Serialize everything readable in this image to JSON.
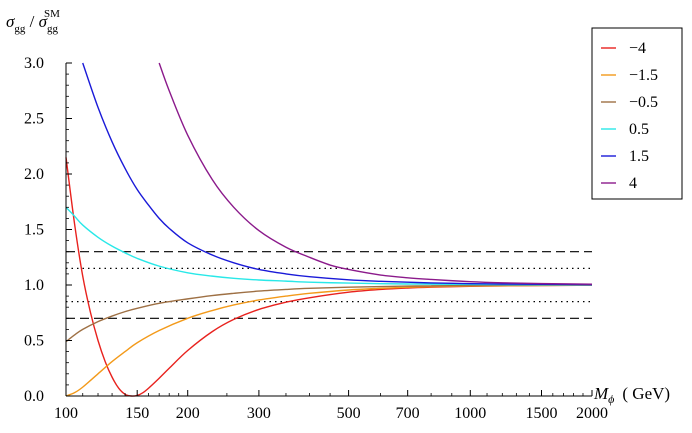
{
  "chart_data": {
    "type": "line",
    "ylabel": {
      "main": "σ",
      "main_sub": "gg",
      "sep": " / ",
      "den": "σ",
      "den_sub": "gg",
      "den_sup": "SM"
    },
    "xlabel": {
      "main": "M",
      "sub": "ϕ",
      "unit": "( GeV)"
    },
    "x_scale": "log",
    "xlim": [
      100,
      2000
    ],
    "ylim": [
      0,
      3.0
    ],
    "x_ticks": [
      {
        "value": 100,
        "label": "100"
      },
      {
        "value": 150,
        "label": "150"
      },
      {
        "value": 200,
        "label": "200"
      },
      {
        "value": 300,
        "label": "300"
      },
      {
        "value": 500,
        "label": "500"
      },
      {
        "value": 700,
        "label": "700"
      },
      {
        "value": 1000,
        "label": "1000"
      },
      {
        "value": 1500,
        "label": "1500"
      },
      {
        "value": 2000,
        "label": "2000"
      }
    ],
    "y_ticks": [
      {
        "value": 0.0,
        "label": "0.0"
      },
      {
        "value": 0.5,
        "label": "0.5"
      },
      {
        "value": 1.0,
        "label": "1.0"
      },
      {
        "value": 1.5,
        "label": "1.5"
      },
      {
        "value": 2.0,
        "label": "2.0"
      },
      {
        "value": 2.5,
        "label": "2.5"
      },
      {
        "value": 3.0,
        "label": "3.0"
      }
    ],
    "grid": false,
    "legend": {
      "position": "top-right"
    },
    "reference_lines": [
      {
        "y": 1.3,
        "style": "dashed"
      },
      {
        "y": 0.7,
        "style": "dashed"
      },
      {
        "y": 1.15,
        "style": "dotted"
      },
      {
        "y": 0.85,
        "style": "dotted"
      }
    ],
    "series": [
      {
        "name": "−4",
        "color": "#e8221e",
        "x": [
          100,
          105,
          110,
          115,
          120,
          125,
          130,
          135,
          140,
          145,
          150,
          155,
          160,
          170,
          180,
          200,
          230,
          260,
          300,
          350,
          400,
          500,
          600,
          700,
          800,
          1000,
          1200,
          1500,
          2000
        ],
        "y": [
          2.15,
          1.55,
          1.08,
          0.75,
          0.5,
          0.31,
          0.17,
          0.07,
          0.015,
          0.0,
          0.005,
          0.03,
          0.07,
          0.16,
          0.25,
          0.41,
          0.58,
          0.69,
          0.78,
          0.845,
          0.885,
          0.935,
          0.96,
          0.973,
          0.98,
          0.988,
          0.992,
          0.995,
          0.998
        ]
      },
      {
        "name": "−1.5",
        "color": "#f39a1a",
        "x": [
          100,
          105,
          110,
          120,
          130,
          140,
          150,
          170,
          200,
          230,
          260,
          300,
          350,
          400,
          500,
          600,
          700,
          800,
          1000,
          1200,
          1500,
          2000
        ],
        "y": [
          0.0,
          0.03,
          0.08,
          0.2,
          0.31,
          0.4,
          0.48,
          0.59,
          0.7,
          0.77,
          0.82,
          0.865,
          0.9,
          0.925,
          0.955,
          0.97,
          0.98,
          0.985,
          0.99,
          0.993,
          0.996,
          0.998
        ]
      },
      {
        "name": "−0.5",
        "color": "#9e7044",
        "x": [
          100,
          105,
          110,
          120,
          130,
          140,
          150,
          170,
          200,
          230,
          260,
          300,
          350,
          400,
          500,
          600,
          700,
          800,
          1000,
          1500,
          2000
        ],
        "y": [
          0.49,
          0.55,
          0.6,
          0.67,
          0.72,
          0.76,
          0.79,
          0.835,
          0.875,
          0.905,
          0.925,
          0.945,
          0.96,
          0.97,
          0.98,
          0.986,
          0.99,
          0.992,
          0.995,
          0.998,
          0.999
        ]
      },
      {
        "name": "0.5",
        "color": "#29e8e8",
        "x": [
          100,
          105,
          110,
          120,
          130,
          140,
          150,
          170,
          200,
          230,
          260,
          300,
          350,
          400,
          500,
          600,
          700,
          800,
          1000,
          1500,
          2000
        ],
        "y": [
          1.7,
          1.62,
          1.54,
          1.43,
          1.35,
          1.29,
          1.24,
          1.17,
          1.11,
          1.08,
          1.06,
          1.045,
          1.035,
          1.025,
          1.017,
          1.012,
          1.009,
          1.007,
          1.005,
          1.002,
          1.001
        ]
      },
      {
        "name": "1.5",
        "color": "#1a1ad8",
        "x": [
          110,
          120,
          130,
          140,
          150,
          160,
          170,
          180,
          200,
          230,
          260,
          300,
          350,
          400,
          500,
          600,
          700,
          800,
          1000,
          1200,
          1500,
          2000
        ],
        "y": [
          3.0,
          2.6,
          2.29,
          2.05,
          1.86,
          1.72,
          1.6,
          1.51,
          1.38,
          1.27,
          1.2,
          1.14,
          1.1,
          1.075,
          1.047,
          1.033,
          1.025,
          1.019,
          1.012,
          1.009,
          1.006,
          1.003
        ]
      },
      {
        "name": "4",
        "color": "#8b1a8b",
        "x": [
          170,
          180,
          200,
          230,
          260,
          300,
          350,
          400,
          450,
          500,
          600,
          700,
          800,
          1000,
          1200,
          1500,
          2000
        ],
        "y": [
          3.0,
          2.75,
          2.35,
          1.95,
          1.7,
          1.49,
          1.34,
          1.25,
          1.18,
          1.14,
          1.09,
          1.065,
          1.05,
          1.03,
          1.02,
          1.013,
          1.007
        ]
      }
    ]
  }
}
